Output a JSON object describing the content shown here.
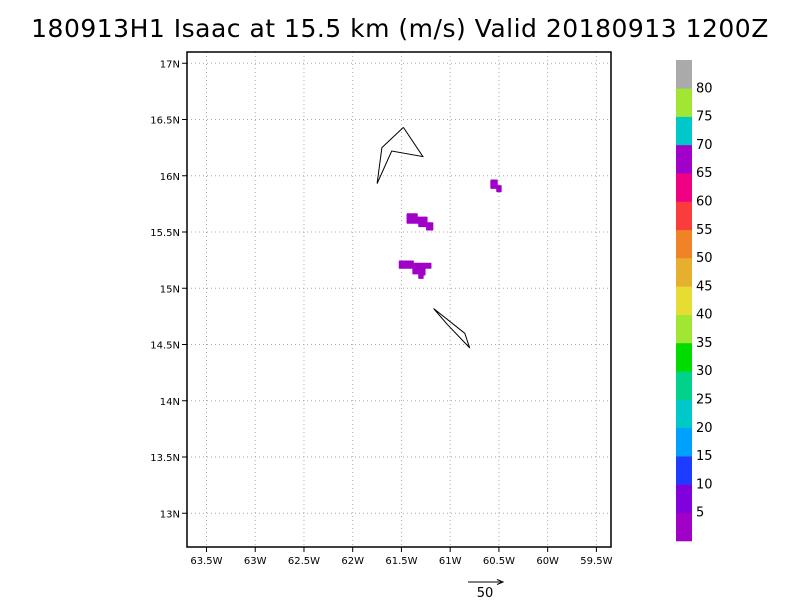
{
  "chart_data": {
    "type": "heatmap",
    "title": "180913H1 Isaac at 15.5 km (m/s) Valid 20180913 1200Z",
    "xlabel": "",
    "ylabel": "",
    "xlim": [
      -63.7,
      -59.35
    ],
    "ylim": [
      12.7,
      17.1
    ],
    "grid": true,
    "x_ticks": [
      {
        "value": -63.5,
        "label": "63.5W"
      },
      {
        "value": -63,
        "label": "63W"
      },
      {
        "value": -62.5,
        "label": "62.5W"
      },
      {
        "value": -62,
        "label": "62W"
      },
      {
        "value": -61.5,
        "label": "61.5W"
      },
      {
        "value": -61,
        "label": "61W"
      },
      {
        "value": -60.5,
        "label": "60.5W"
      },
      {
        "value": -60,
        "label": "60W"
      },
      {
        "value": -59.5,
        "label": "59.5W"
      }
    ],
    "y_ticks": [
      {
        "value": 13,
        "label": "13N"
      },
      {
        "value": 13.5,
        "label": "13.5N"
      },
      {
        "value": 14,
        "label": "14N"
      },
      {
        "value": 14.5,
        "label": "14.5N"
      },
      {
        "value": 15,
        "label": "15N"
      },
      {
        "value": 15.5,
        "label": "15.5N"
      },
      {
        "value": 16,
        "label": "16N"
      },
      {
        "value": 16.5,
        "label": "16.5N"
      },
      {
        "value": 17,
        "label": "17N"
      }
    ],
    "colorbar": {
      "colors": [
        "#a000c8",
        "#8200dc",
        "#1e3cff",
        "#00a0ff",
        "#00c8c8",
        "#00d28c",
        "#00dc00",
        "#a0e632",
        "#e6dc32",
        "#e6af2d",
        "#f08228",
        "#fa3c3c",
        "#f00082",
        "#a000c8",
        "#00c8c8",
        "#a0e632",
        "#aaaaaa"
      ],
      "labels": [
        "5",
        "10",
        "15",
        "20",
        "25",
        "30",
        "35",
        "40",
        "45",
        "50",
        "55",
        "60",
        "65",
        "70",
        "75",
        "80"
      ]
    },
    "patches": [
      {
        "value": 3,
        "polygon": [
          [
            -60.58,
            15.96
          ],
          [
            -60.52,
            15.96
          ],
          [
            -60.52,
            15.91
          ],
          [
            -60.48,
            15.91
          ],
          [
            -60.48,
            15.86
          ],
          [
            -60.52,
            15.86
          ],
          [
            -60.52,
            15.89
          ],
          [
            -60.58,
            15.89
          ]
        ]
      },
      {
        "value": 3,
        "polygon": [
          [
            -61.44,
            15.66
          ],
          [
            -61.34,
            15.66
          ],
          [
            -61.34,
            15.63
          ],
          [
            -61.24,
            15.63
          ],
          [
            -61.24,
            15.58
          ],
          [
            -61.18,
            15.58
          ],
          [
            -61.18,
            15.52
          ],
          [
            -61.24,
            15.52
          ],
          [
            -61.24,
            15.55
          ],
          [
            -61.32,
            15.55
          ],
          [
            -61.32,
            15.58
          ],
          [
            -61.44,
            15.58
          ]
        ]
      },
      {
        "value": 3,
        "polygon": [
          [
            -61.52,
            15.24
          ],
          [
            -61.38,
            15.24
          ],
          [
            -61.38,
            15.22
          ],
          [
            -61.2,
            15.22
          ],
          [
            -61.2,
            15.18
          ],
          [
            -61.26,
            15.18
          ],
          [
            -61.26,
            15.12
          ],
          [
            -61.28,
            15.12
          ],
          [
            -61.28,
            15.09
          ],
          [
            -61.32,
            15.09
          ],
          [
            -61.32,
            15.13
          ],
          [
            -61.38,
            15.13
          ],
          [
            -61.38,
            15.18
          ],
          [
            -61.52,
            15.18
          ]
        ]
      }
    ],
    "coastlines": [
      [
        [
          -61.48,
          16.43
        ],
        [
          -61.7,
          16.25
        ],
        [
          -61.75,
          15.93
        ],
        [
          -61.6,
          16.22
        ],
        [
          -61.28,
          16.17
        ],
        [
          -61.48,
          16.43
        ]
      ],
      [
        [
          -61.17,
          14.82
        ],
        [
          -60.85,
          14.6
        ],
        [
          -60.8,
          14.47
        ],
        [
          -61.03,
          14.68
        ],
        [
          -61.17,
          14.82
        ]
      ]
    ],
    "reference_vector": {
      "label": "50",
      "magnitude": 50
    }
  }
}
